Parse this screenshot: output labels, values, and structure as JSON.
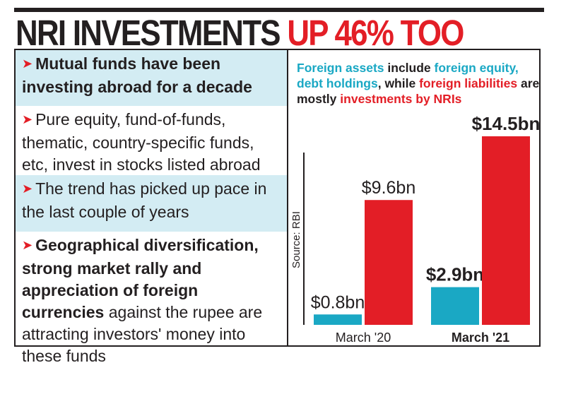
{
  "headline": {
    "part1": "NRI INVESTMENTS",
    "part2": "UP 46% TOO"
  },
  "points": [
    {
      "bold": "Mutual funds have been investing abroad for a decade",
      "normal": ""
    },
    {
      "bold": "",
      "normal": "Pure equity, fund-of-funds, thematic, country-specific funds, etc, invest in stocks listed abroad"
    },
    {
      "bold": "",
      "normal": "The trend has picked up pace in the last couple of years"
    },
    {
      "bold": "Geographical diversification, strong market rally and appreciation of foreign currencies",
      "normal": "against the rupee are attracting investors' money into these funds"
    }
  ],
  "intro": {
    "t1": "Foreign assets",
    "t2": " include ",
    "t3": "foreign equity, debt holdings",
    "t4": ", while ",
    "t5": "foreign liabilities",
    "t6": " are mostly ",
    "t7": "investments by NRIs"
  },
  "source": "Source: RBI",
  "colors": {
    "assets": "#1aa8c4",
    "liabilities": "#e31e26",
    "shade": "#d3ecf3",
    "accent": "#e31e26"
  },
  "chart_data": {
    "type": "bar",
    "categories": [
      "March '20",
      "March '21"
    ],
    "series": [
      {
        "values": [
          0.8,
          2.9
        ],
        "labels": [
          "$0.8bn",
          "$2.9bn"
        ]
      },
      {
        "values": [
          9.6,
          14.5
        ],
        "labels": [
          "$9.6bn",
          "$14.5bn"
        ]
      }
    ],
    "ylim": [
      0,
      14.5
    ],
    "grid": false
  }
}
